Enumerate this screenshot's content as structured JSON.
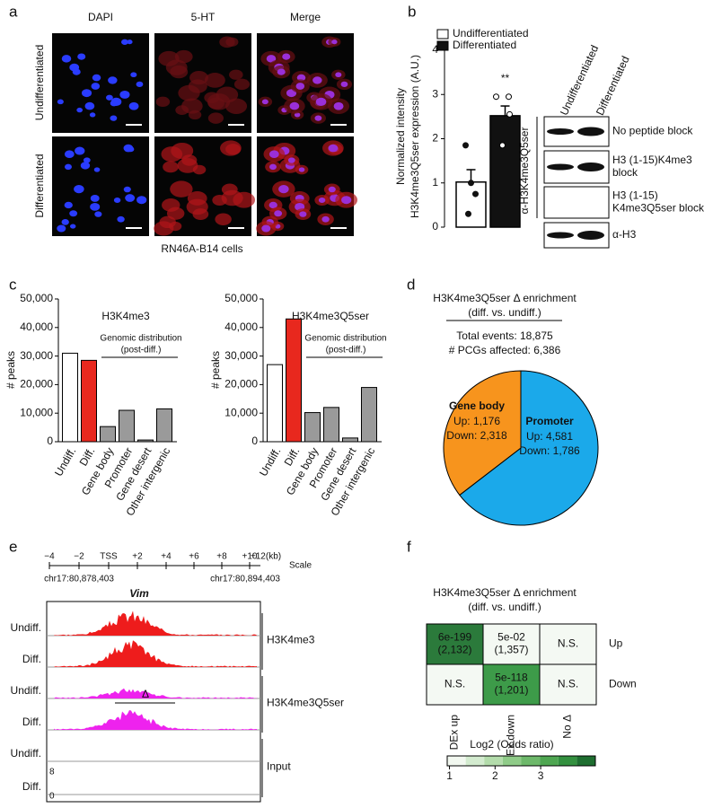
{
  "panel_a": {
    "letter": "a",
    "columns": [
      "DAPI",
      "5-HT",
      "Merge"
    ],
    "column_colors": [
      "#2a2ad0",
      "#d02020",
      "#111111"
    ],
    "rows": [
      "Undifferentiated",
      "Differentiated"
    ],
    "caption": "RN46A-B14 cells"
  },
  "panel_b": {
    "letter": "b",
    "type": "bar",
    "ylabel": [
      "Normalized intensity",
      "H3K4me3Q5ser expression (A.U.)"
    ],
    "series": [
      {
        "name": "Undifferentiated",
        "color": "#ffffff",
        "values": [
          1.02
        ],
        "errors": [
          0.28
        ],
        "points": [
          1.85,
          1.0,
          0.75,
          0.3
        ],
        "point_fill": "#111111"
      },
      {
        "name": "Differentiated",
        "color": "#111111",
        "values": [
          2.52
        ],
        "errors": [
          0.22
        ],
        "points": [
          2.95,
          2.95,
          2.55,
          1.85
        ],
        "point_fill": "#ffffff"
      }
    ],
    "significance": "**",
    "ylim": [
      0,
      4
    ],
    "yticks": [
      0,
      1,
      2,
      3,
      4
    ],
    "blot": {
      "columns": [
        "Undifferentiated",
        "Differentiated"
      ],
      "antibody": "α-H3K4me3Q5ser",
      "rows": [
        [
          "No peptide block"
        ],
        [
          "H3 (1-15)K4me3",
          "block"
        ],
        [
          "H3 (1-15)",
          "K4me3Q5ser block"
        ],
        [
          "α-H3"
        ]
      ]
    }
  },
  "panel_c": {
    "letter": "c",
    "ylabel": "# peaks",
    "annotation": [
      "Genomic distribution",
      "(post-diff.)"
    ],
    "categories": [
      "Undiff.",
      "Diff.",
      "Gene body",
      "Promoter",
      "Gene desert",
      "Other intergenic"
    ],
    "colors": [
      "#ffffff",
      "#e8281e",
      "#9a9a9a",
      "#9a9a9a",
      "#9a9a9a",
      "#9a9a9a"
    ],
    "ylim": [
      0,
      50000
    ],
    "yticks": [
      0,
      {
        "value": 10000,
        "label": "10,000"
      },
      {
        "value": 20000,
        "label": "20,000"
      },
      {
        "value": 30000,
        "label": "30,000"
      },
      {
        "value": 40000,
        "label": "40,000"
      },
      {
        "value": 50000,
        "label": "50,000"
      }
    ],
    "charts": [
      {
        "type": "bar",
        "title": "H3K4me3",
        "values": [
          31000,
          28500,
          5300,
          11000,
          600,
          11500
        ]
      },
      {
        "type": "bar",
        "title": "H3K4me3Q5ser",
        "values": [
          27000,
          43000,
          10200,
          12000,
          1300,
          19000
        ]
      }
    ]
  },
  "panel_d": {
    "letter": "d",
    "type": "pie",
    "title": "H3K4me3Q5ser Δ enrichment",
    "subtitle": "(diff. vs. undiff.)",
    "total": "Total events: 18,875",
    "pcgs": "# PCGs affected: 6,386",
    "slices": [
      {
        "name": "Promoter",
        "color": "#1ba9ea",
        "up": 4581,
        "down": 1786,
        "up_label": "Up: 4,581",
        "down_label": "Down: 1,786"
      },
      {
        "name": "Gene body",
        "color": "#f7941d",
        "up": 1176,
        "down": 2318,
        "up_label": "Up: 1,176",
        "down_label": "Down: 2,318"
      }
    ]
  },
  "panel_e": {
    "letter": "e",
    "scale_ticks": [
      "−4",
      "−2",
      "TSS",
      "+2",
      "+4",
      "+6",
      "+8",
      "+10",
      "+12(kb)"
    ],
    "scale": "Scale",
    "coords": [
      "chr17:80,878,403",
      "chr17:80,894,403"
    ],
    "gene": "Vim",
    "tracks": [
      {
        "group": "H3K4me3",
        "color": "#ee1c1c",
        "rows": [
          "Undiff.",
          "Diff."
        ]
      },
      {
        "group": "H3K4me3Q5ser",
        "color": "#ee22ee",
        "rows": [
          "Undiff.",
          "Diff."
        ]
      },
      {
        "group": "Input",
        "color": "#888888",
        "rows": [
          "Undiff.",
          "Diff."
        ]
      }
    ],
    "delta": "Δ",
    "input_scale": [
      "8",
      "0"
    ]
  },
  "panel_f": {
    "letter": "f",
    "title": "H3K4me3Q5ser Δ enrichment",
    "subtitle": "(diff. vs. undiff.)",
    "rows": [
      "Up",
      "Down"
    ],
    "columns": [
      "DEx up",
      "DEx down",
      "No Δ"
    ],
    "cells": [
      [
        {
          "lines": [
            "6e-199",
            "(2,132)"
          ],
          "color": "#2b7a3b"
        },
        {
          "lines": [
            "5e-02",
            "(1,357)"
          ],
          "color": "#f4f9f3"
        },
        {
          "lines": [
            "N.S."
          ],
          "color": "#f4f9f3"
        }
      ],
      [
        {
          "lines": [
            "N.S."
          ],
          "color": "#f4f9f3"
        },
        {
          "lines": [
            "5e-118",
            "(1,201)"
          ],
          "color": "#3d9b49"
        },
        {
          "lines": [
            "N.S."
          ],
          "color": "#f4f9f3"
        }
      ]
    ],
    "colorbar": {
      "label": "Log2 (Odds ratio)",
      "lim": [
        0.95,
        4.2
      ],
      "ticks": [
        1,
        2,
        3
      ],
      "colors": [
        "#f2f8f0",
        "#d3ebcf",
        "#b3dcab",
        "#8fcb88",
        "#6db86a",
        "#4ea651",
        "#33903f",
        "#1e6e30"
      ]
    }
  }
}
